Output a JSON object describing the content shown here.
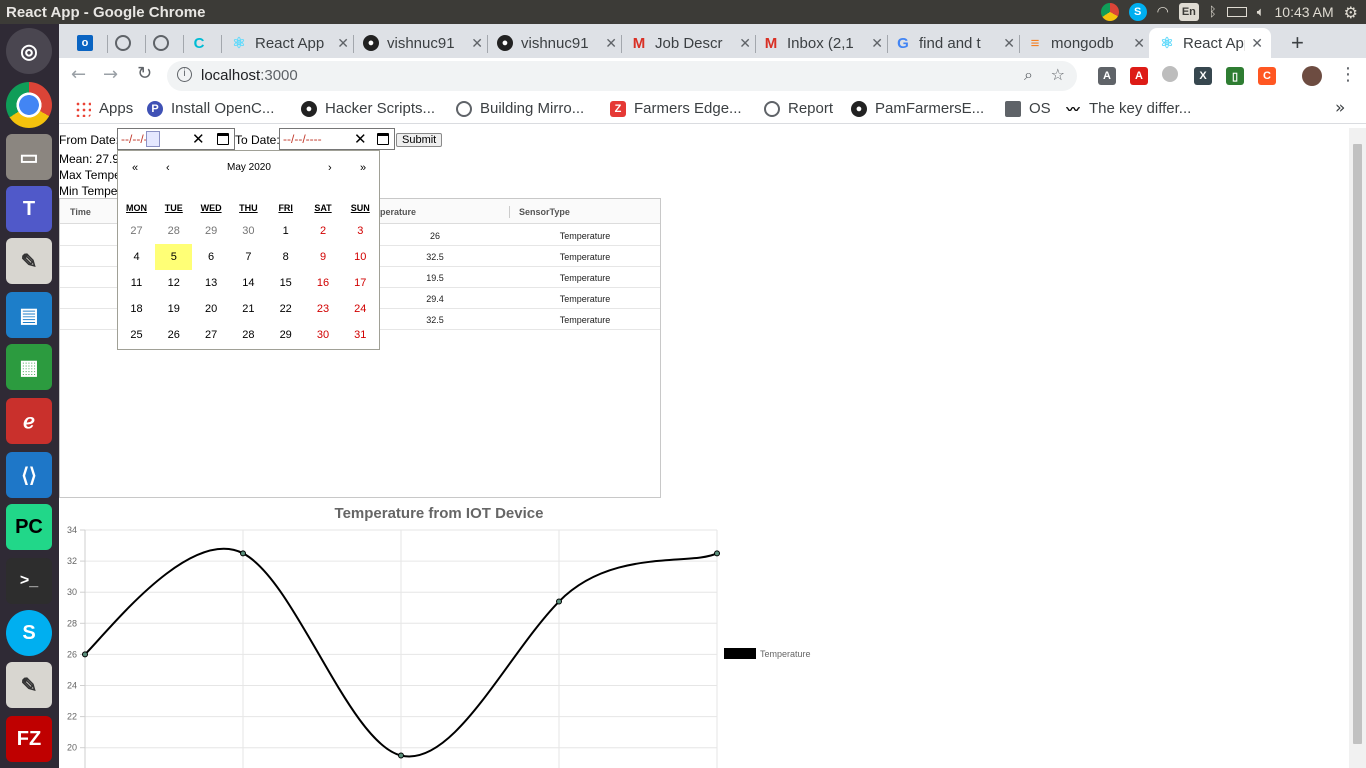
{
  "window": {
    "title": "React App - Google Chrome"
  },
  "system_tray": {
    "lang": "En",
    "time": "10:43 AM"
  },
  "tabs": [
    {
      "label": "",
      "icon": "outlook-icon"
    },
    {
      "label": "",
      "icon": "globe-icon"
    },
    {
      "label": "",
      "icon": "globe-icon"
    },
    {
      "label": "",
      "icon": "c-icon"
    },
    {
      "label": "React App",
      "icon": "react-icon"
    },
    {
      "label": "vishnuc91",
      "icon": "github-icon"
    },
    {
      "label": "vishnuc91",
      "icon": "github-icon"
    },
    {
      "label": "Job Descr",
      "icon": "gmail-icon"
    },
    {
      "label": "Inbox (2,1",
      "icon": "gmail-icon"
    },
    {
      "label": "find and t",
      "icon": "google-icon"
    },
    {
      "label": "mongodb",
      "icon": "stackoverflow-icon"
    },
    {
      "label": "React App",
      "icon": "react-icon",
      "active": true
    }
  ],
  "omnibox": {
    "host": "localhost",
    "port": ":3000"
  },
  "bookmarks": [
    {
      "label": "Apps",
      "icon": "apps-grid-icon"
    },
    {
      "label": "Install OpenC...",
      "icon": "python-icon"
    },
    {
      "label": "Hacker Scripts...",
      "icon": "github-icon"
    },
    {
      "label": "Building Mirro...",
      "icon": "globe-icon"
    },
    {
      "label": "Farmers Edge...",
      "icon": "z-icon"
    },
    {
      "label": "Report",
      "icon": "globe-icon"
    },
    {
      "label": "PamFarmersE...",
      "icon": "github-icon"
    },
    {
      "label": "OS",
      "icon": "folder-icon"
    },
    {
      "label": "The key differ...",
      "icon": "logo-icon"
    }
  ],
  "form": {
    "from_label": "From Date:",
    "from_placeholder": "--/--/----",
    "to_label": "To Date:",
    "to_placeholder": "--/--/----",
    "submit_label": "Submit"
  },
  "stats": {
    "mean": "Mean: 27.9",
    "max": "Max Tempe",
    "min": "Min Tempe"
  },
  "table": {
    "headers": [
      "Time",
      "mperature",
      "SensorType"
    ],
    "rows": [
      {
        "temperature": "26",
        "sensor": "Temperature"
      },
      {
        "temperature": "32.5",
        "sensor": "Temperature"
      },
      {
        "temperature": "19.5",
        "sensor": "Temperature"
      },
      {
        "temperature": "29.4",
        "sensor": "Temperature"
      },
      {
        "temperature": "32.5",
        "sensor": "Temperature"
      }
    ]
  },
  "calendar": {
    "month_label": "May 2020",
    "nav": {
      "prev_year": "«",
      "prev_month": "‹",
      "next_month": "›",
      "next_year": "»"
    },
    "weekdays": [
      "MON",
      "TUE",
      "WED",
      "THU",
      "FRI",
      "SAT",
      "SUN"
    ],
    "weeks": [
      [
        "27",
        "28",
        "29",
        "30",
        "1",
        "2",
        "3"
      ],
      [
        "4",
        "5",
        "6",
        "7",
        "8",
        "9",
        "10"
      ],
      [
        "11",
        "12",
        "13",
        "14",
        "15",
        "16",
        "17"
      ],
      [
        "18",
        "19",
        "20",
        "21",
        "22",
        "23",
        "24"
      ],
      [
        "25",
        "26",
        "27",
        "28",
        "29",
        "30",
        "31"
      ]
    ],
    "today": "5",
    "colors": {
      "today_bg": "#ffff76",
      "weekend": "#d10000"
    }
  },
  "chart_data": {
    "type": "line",
    "title": "Temperature from IOT Device",
    "x": [
      "",
      "",
      "",
      "",
      ""
    ],
    "series": [
      {
        "name": "Temperature",
        "values": [
          26,
          32.5,
          19.5,
          29.4,
          32.5
        ],
        "color": "#000000"
      }
    ],
    "yticks": [
      34,
      32,
      30,
      28,
      26,
      24,
      22,
      20
    ],
    "ylim": [
      19,
      34
    ],
    "legend": "right",
    "grid": true,
    "smooth": true
  }
}
